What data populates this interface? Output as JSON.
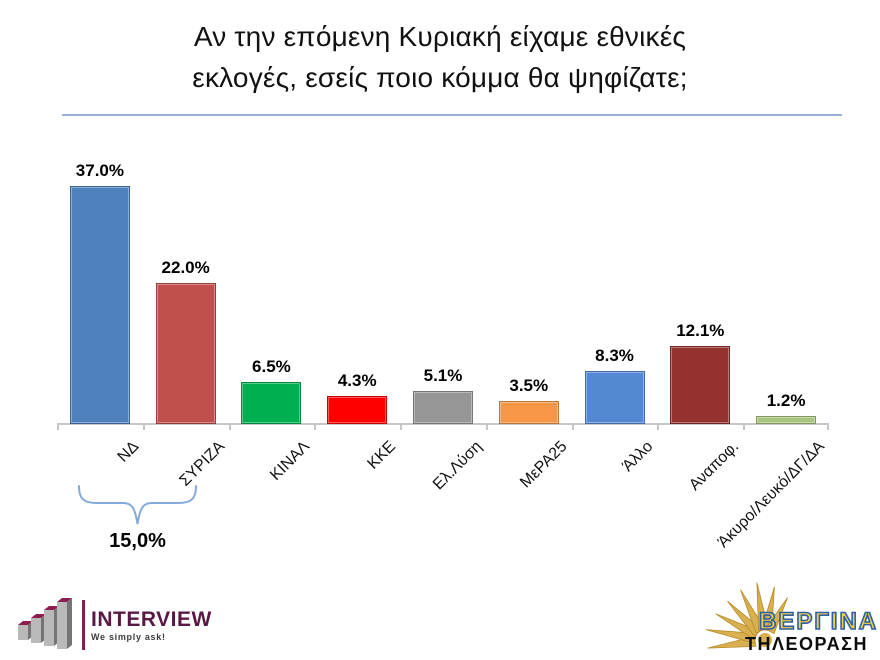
{
  "title": {
    "line1": "Αν την επόμενη Κυριακή είχαμε εθνικές",
    "line2": "εκλογές, εσείς ποιο κόμμα θα ψηφίζατε;"
  },
  "chart_data": {
    "type": "bar",
    "title": "Αν την επόμενη Κυριακή είχαμε εθνικές εκλογές, εσείς ποιο κόμμα θα ψηφίζατε;",
    "categories": [
      "ΝΔ",
      "ΣΥΡΙΖΑ",
      "ΚΙΝΑΛ",
      "ΚΚΕ",
      "Ελ.Λύση",
      "ΜεΡΑ25",
      "Άλλο",
      "Αναποφ.",
      "Άκυρο/Λευκό/ΔΓ/ΔΑ"
    ],
    "values": [
      37.0,
      22.0,
      6.5,
      4.3,
      5.1,
      3.5,
      8.3,
      12.1,
      1.2
    ],
    "value_labels": [
      "37.0%",
      "22.0%",
      "6.5%",
      "4.3%",
      "5.1%",
      "3.5%",
      "8.3%",
      "12.1%",
      "1.2%"
    ],
    "bar_colors": [
      "#4F81BD",
      "#C0504D",
      "#00B050",
      "#FF0000",
      "#969696",
      "#F79646",
      "#5389D3",
      "#93322F",
      "#A9C47E"
    ],
    "xlabel": "",
    "ylabel": "",
    "ylim": [
      0,
      40
    ],
    "grid": false,
    "legend": "none",
    "annotation": {
      "label": "15,0%",
      "span_categories": [
        "ΝΔ",
        "ΣΥΡΙΖΑ"
      ],
      "style": "curly-brace-below"
    }
  },
  "colors": {
    "title_rule": "#95B3D7",
    "axis": "#C6C6C6",
    "brace": "#85A9DA",
    "interview_maroon": "#7E2050",
    "vergina_gold": "#D9B04F",
    "vergina_blue": "#2F5FA8",
    "vergina_yellow": "#F2D23E"
  },
  "logos": {
    "interview": {
      "name": "INTERVIEW",
      "tagline": "We simply ask!"
    },
    "vergina": {
      "name": "ΒΕΡΓΙΝΑ",
      "subtitle": "ΤΗΛΕΟΡΑΣΗ"
    }
  }
}
